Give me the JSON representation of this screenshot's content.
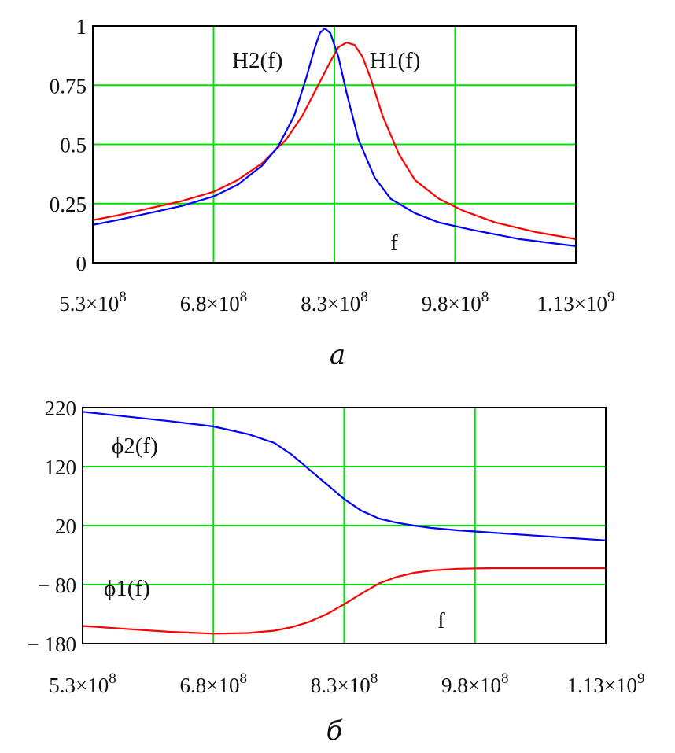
{
  "chart_data": [
    {
      "type": "line",
      "caption": "a",
      "xlabel": "f",
      "xlim": [
        530000000,
        1130000000
      ],
      "ylim": [
        0,
        1
      ],
      "x_ticks": [
        {
          "value": 530000000,
          "mantissa": "5.3×10",
          "exp": "8"
        },
        {
          "value": 680000000,
          "mantissa": "6.8×10",
          "exp": "8"
        },
        {
          "value": 830000000,
          "mantissa": "8.3×10",
          "exp": "8"
        },
        {
          "value": 980000000,
          "mantissa": "9.8×10",
          "exp": "8"
        },
        {
          "value": 1130000000,
          "mantissa": "1.13×10",
          "exp": "9"
        }
      ],
      "y_ticks": [
        {
          "value": 0,
          "label": "0"
        },
        {
          "value": 0.25,
          "label": "0.25"
        },
        {
          "value": 0.5,
          "label": "0.5"
        },
        {
          "value": 0.75,
          "label": "0.75"
        },
        {
          "value": 1,
          "label": "1"
        }
      ],
      "grid": true,
      "series": [
        {
          "name": "H1(f)",
          "color": "#ff0000",
          "x": [
            530000000,
            560000000,
            600000000,
            640000000,
            680000000,
            710000000,
            740000000,
            770000000,
            790000000,
            810000000,
            825000000,
            835000000,
            845000000,
            855000000,
            865000000,
            875000000,
            890000000,
            910000000,
            930000000,
            960000000,
            990000000,
            1030000000,
            1080000000,
            1130000000
          ],
          "y": [
            0.18,
            0.2,
            0.23,
            0.26,
            0.3,
            0.35,
            0.42,
            0.52,
            0.62,
            0.75,
            0.85,
            0.91,
            0.93,
            0.92,
            0.87,
            0.78,
            0.62,
            0.46,
            0.35,
            0.27,
            0.22,
            0.17,
            0.13,
            0.1
          ]
        },
        {
          "name": "H2(f)",
          "color": "#0000ff",
          "x": [
            530000000,
            560000000,
            600000000,
            640000000,
            680000000,
            710000000,
            740000000,
            760000000,
            780000000,
            795000000,
            805000000,
            812000000,
            818000000,
            825000000,
            835000000,
            845000000,
            860000000,
            880000000,
            900000000,
            930000000,
            960000000,
            1000000000,
            1060000000,
            1130000000
          ],
          "y": [
            0.16,
            0.18,
            0.21,
            0.24,
            0.28,
            0.33,
            0.41,
            0.49,
            0.62,
            0.78,
            0.9,
            0.97,
            0.99,
            0.97,
            0.87,
            0.72,
            0.52,
            0.36,
            0.27,
            0.21,
            0.17,
            0.14,
            0.1,
            0.07
          ]
        }
      ]
    },
    {
      "type": "line",
      "caption": "б",
      "xlabel": "f",
      "xlim": [
        530000000,
        1130000000
      ],
      "ylim": [
        -180,
        220
      ],
      "x_ticks": [
        {
          "value": 530000000,
          "mantissa": "5.3×10",
          "exp": "8"
        },
        {
          "value": 680000000,
          "mantissa": "6.8×10",
          "exp": "8"
        },
        {
          "value": 830000000,
          "mantissa": "8.3×10",
          "exp": "8"
        },
        {
          "value": 980000000,
          "mantissa": "9.8×10",
          "exp": "8"
        },
        {
          "value": 1130000000,
          "mantissa": "1.13×10",
          "exp": "9"
        }
      ],
      "y_ticks": [
        {
          "value": -180,
          "label": "− 180"
        },
        {
          "value": -80,
          "label": "− 80"
        },
        {
          "value": 20,
          "label": "20"
        },
        {
          "value": 120,
          "label": "120"
        },
        {
          "value": 220,
          "label": "220"
        }
      ],
      "grid": true,
      "series": [
        {
          "name": "ϕ1(f)",
          "color": "#ff0000",
          "x": [
            530000000,
            580000000,
            630000000,
            680000000,
            720000000,
            750000000,
            770000000,
            790000000,
            810000000,
            830000000,
            850000000,
            870000000,
            890000000,
            910000000,
            930000000,
            960000000,
            1000000000,
            1050000000,
            1130000000
          ],
          "y": [
            -150,
            -155,
            -160,
            -163,
            -162,
            -158,
            -152,
            -143,
            -130,
            -113,
            -95,
            -78,
            -67,
            -60,
            -56,
            -53,
            -52,
            -52,
            -52
          ]
        },
        {
          "name": "ϕ2(f)",
          "color": "#0000ff",
          "x": [
            530000000,
            580000000,
            630000000,
            680000000,
            720000000,
            750000000,
            770000000,
            790000000,
            810000000,
            830000000,
            850000000,
            870000000,
            890000000,
            910000000,
            930000000,
            960000000,
            1000000000,
            1050000000,
            1130000000
          ],
          "y": [
            213,
            205,
            197,
            188,
            175,
            160,
            140,
            115,
            90,
            65,
            45,
            32,
            25,
            20,
            16,
            12,
            8,
            3,
            -5
          ]
        }
      ]
    }
  ]
}
